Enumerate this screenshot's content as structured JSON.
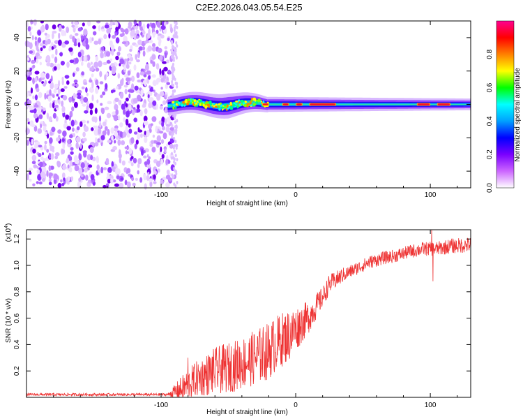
{
  "title": "C2E2.2026.043.05.54.E25",
  "chart_data": [
    {
      "type": "heatmap",
      "title": "C2E2.2026.043.05.54.E25",
      "xlabel": "Height of straight line (km)",
      "ylabel": "Frequency (Hz)",
      "xlim": [
        -200,
        130
      ],
      "ylim": [
        -50,
        50
      ],
      "x_ticks": [
        -100,
        0,
        100
      ],
      "y_ticks": [
        -40,
        -20,
        0,
        20,
        40
      ],
      "noise_region_x": [
        -200,
        -90
      ],
      "signal_band_center_hz": 0,
      "signal_band_halfwidth_hz": [
        [
          -95,
          4
        ],
        [
          -50,
          6
        ],
        [
          -20,
          3
        ],
        [
          130,
          2
        ]
      ],
      "peak_segments_x": [
        [
          -25,
          -20
        ],
        [
          -10,
          -5
        ],
        [
          0,
          5
        ],
        [
          10,
          30
        ],
        [
          90,
          100
        ],
        [
          105,
          115
        ]
      ],
      "colorbar": {
        "label": "Normalized spectral amplitude",
        "range": [
          0,
          1
        ],
        "ticks": [
          "0.0",
          "0.2",
          "0.4",
          "0.6",
          "0.8"
        ],
        "tick_values": [
          0.0,
          0.2,
          0.4,
          0.6,
          0.8
        ],
        "colors": [
          "#ffffff",
          "#cc66ff",
          "#7a00ff",
          "#0000ff",
          "#00a0ff",
          "#00ffff",
          "#00ff00",
          "#ffff00",
          "#ff8000",
          "#ff0000",
          "#ff0090"
        ]
      }
    },
    {
      "type": "line",
      "xlabel": "Height of straight line (km)",
      "ylabel": "SNR (10 * v/v)",
      "multiplier": "(x10",
      "multiplier_exp": "4",
      "multiplier_close": ")",
      "xlim": [
        -200,
        130
      ],
      "ylim": [
        0,
        1.27
      ],
      "x_ticks": [
        -100,
        0,
        100
      ],
      "y_ticks": [
        0.2,
        0.4,
        0.6,
        0.8,
        1.0,
        1.2
      ],
      "y_tick_labels": [
        "0.2",
        "0.4",
        "0.6",
        "0.8",
        "1.0",
        "1.2"
      ],
      "series": [
        {
          "name": "SNR",
          "color": "#ee3333",
          "trend": [
            [
              -200,
              0.02
            ],
            [
              -95,
              0.02
            ],
            [
              -85,
              0.05
            ],
            [
              -75,
              0.12
            ],
            [
              -60,
              0.18
            ],
            [
              -45,
              0.22
            ],
            [
              -30,
              0.28
            ],
            [
              -20,
              0.33
            ],
            [
              -15,
              0.38
            ],
            [
              -10,
              0.42
            ],
            [
              -5,
              0.45
            ],
            [
              0,
              0.5
            ],
            [
              10,
              0.6
            ],
            [
              20,
              0.75
            ],
            [
              25,
              0.85
            ],
            [
              35,
              0.92
            ],
            [
              45,
              0.97
            ],
            [
              55,
              1.02
            ],
            [
              65,
              1.05
            ],
            [
              75,
              1.07
            ],
            [
              85,
              1.1
            ],
            [
              95,
              1.12
            ],
            [
              105,
              1.12
            ],
            [
              115,
              1.14
            ],
            [
              130,
              1.15
            ]
          ],
          "noise_amplitude": [
            [
              -200,
              0.01
            ],
            [
              -95,
              0.01
            ],
            [
              -85,
              0.1
            ],
            [
              -60,
              0.18
            ],
            [
              -40,
              0.2
            ],
            [
              -20,
              0.22
            ],
            [
              -5,
              0.2
            ],
            [
              10,
              0.12
            ],
            [
              20,
              0.08
            ],
            [
              40,
              0.05
            ],
            [
              80,
              0.05
            ],
            [
              130,
              0.06
            ]
          ],
          "spikes": [
            [
              -80,
              0.3
            ],
            [
              101,
              1.27
            ],
            [
              102,
              0.88
            ]
          ]
        }
      ]
    }
  ]
}
